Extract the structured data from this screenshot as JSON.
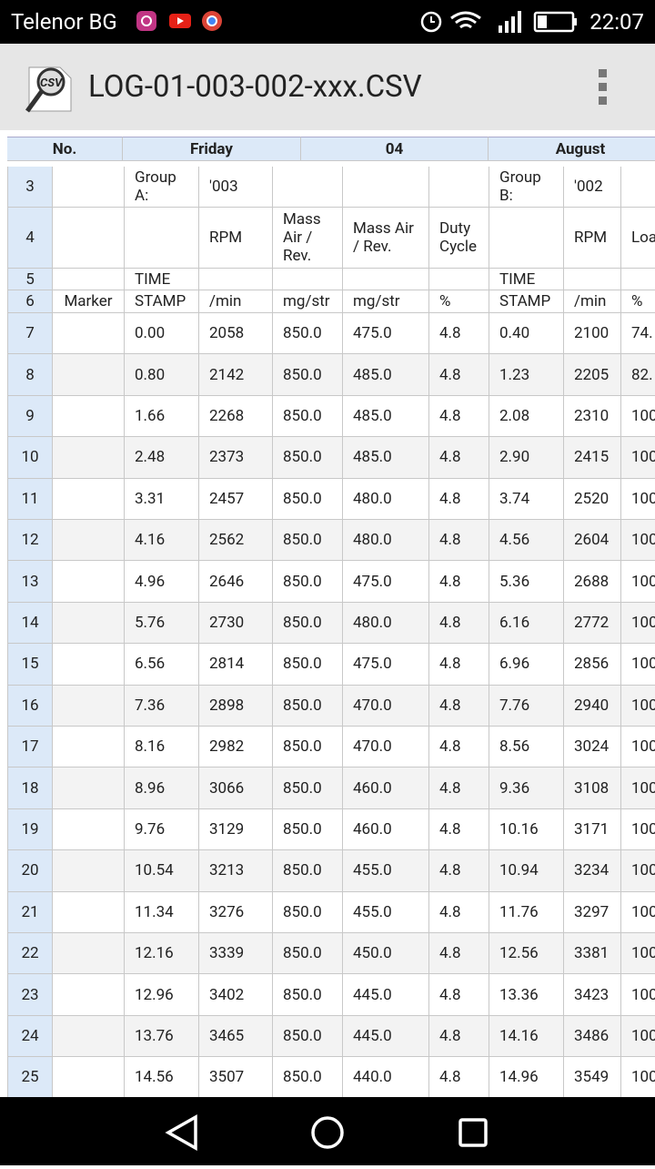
{
  "status_bar": {
    "carrier": "Telenor BG",
    "time": "22:07"
  },
  "app_bar": {
    "title": "LOG-01-003-002-xxx.CSV"
  },
  "sheet": {
    "header": [
      "No.",
      "Friday",
      "04",
      "August"
    ],
    "rows": [
      [
        "3",
        null,
        "Group A:",
        "'003",
        null,
        null,
        null,
        "Group B:",
        "'002",
        null
      ],
      [
        "4",
        null,
        null,
        "RPM",
        "Mass Air / Rev.",
        "Mass Air / Rev.",
        "Duty Cycle",
        null,
        "RPM",
        "Loa"
      ],
      [
        "5",
        null,
        "TIME",
        null,
        null,
        null,
        null,
        "TIME",
        null,
        null
      ],
      [
        "6",
        "Marker",
        "STAMP",
        "/min",
        "mg/str",
        "mg/str",
        "%",
        "STAMP",
        "/min",
        "%"
      ],
      [
        "7",
        null,
        "0.00",
        "2058",
        "850.0",
        "475.0",
        "4.8",
        "0.40",
        "2100",
        "74."
      ],
      [
        "8",
        null,
        "0.80",
        "2142",
        "850.0",
        "485.0",
        "4.8",
        "1.23",
        "2205",
        "82."
      ],
      [
        "9",
        null,
        "1.66",
        "2268",
        "850.0",
        "485.0",
        "4.8",
        "2.08",
        "2310",
        "100"
      ],
      [
        "10",
        null,
        "2.48",
        "2373",
        "850.0",
        "485.0",
        "4.8",
        "2.90",
        "2415",
        "100"
      ],
      [
        "11",
        null,
        "3.31",
        "2457",
        "850.0",
        "480.0",
        "4.8",
        "3.74",
        "2520",
        "100"
      ],
      [
        "12",
        null,
        "4.16",
        "2562",
        "850.0",
        "480.0",
        "4.8",
        "4.56",
        "2604",
        "100"
      ],
      [
        "13",
        null,
        "4.96",
        "2646",
        "850.0",
        "475.0",
        "4.8",
        "5.36",
        "2688",
        "100"
      ],
      [
        "14",
        null,
        "5.76",
        "2730",
        "850.0",
        "480.0",
        "4.8",
        "6.16",
        "2772",
        "100"
      ],
      [
        "15",
        null,
        "6.56",
        "2814",
        "850.0",
        "475.0",
        "4.8",
        "6.96",
        "2856",
        "100"
      ],
      [
        "16",
        null,
        "7.36",
        "2898",
        "850.0",
        "470.0",
        "4.8",
        "7.76",
        "2940",
        "100"
      ],
      [
        "17",
        null,
        "8.16",
        "2982",
        "850.0",
        "470.0",
        "4.8",
        "8.56",
        "3024",
        "100"
      ],
      [
        "18",
        null,
        "8.96",
        "3066",
        "850.0",
        "460.0",
        "4.8",
        "9.36",
        "3108",
        "100"
      ],
      [
        "19",
        null,
        "9.76",
        "3129",
        "850.0",
        "460.0",
        "4.8",
        "10.16",
        "3171",
        "100"
      ],
      [
        "20",
        null,
        "10.54",
        "3213",
        "850.0",
        "455.0",
        "4.8",
        "10.94",
        "3234",
        "100"
      ],
      [
        "21",
        null,
        "11.34",
        "3276",
        "850.0",
        "455.0",
        "4.8",
        "11.76",
        "3297",
        "100"
      ],
      [
        "22",
        null,
        "12.16",
        "3339",
        "850.0",
        "450.0",
        "4.8",
        "12.56",
        "3381",
        "100"
      ],
      [
        "23",
        null,
        "12.96",
        "3402",
        "850.0",
        "445.0",
        "4.8",
        "13.36",
        "3423",
        "100"
      ],
      [
        "24",
        null,
        "13.76",
        "3465",
        "850.0",
        "445.0",
        "4.8",
        "14.16",
        "3486",
        "100"
      ],
      [
        "25",
        null,
        "14.56",
        "3507",
        "850.0",
        "440.0",
        "4.8",
        "14.96",
        "3549",
        "100"
      ]
    ]
  }
}
